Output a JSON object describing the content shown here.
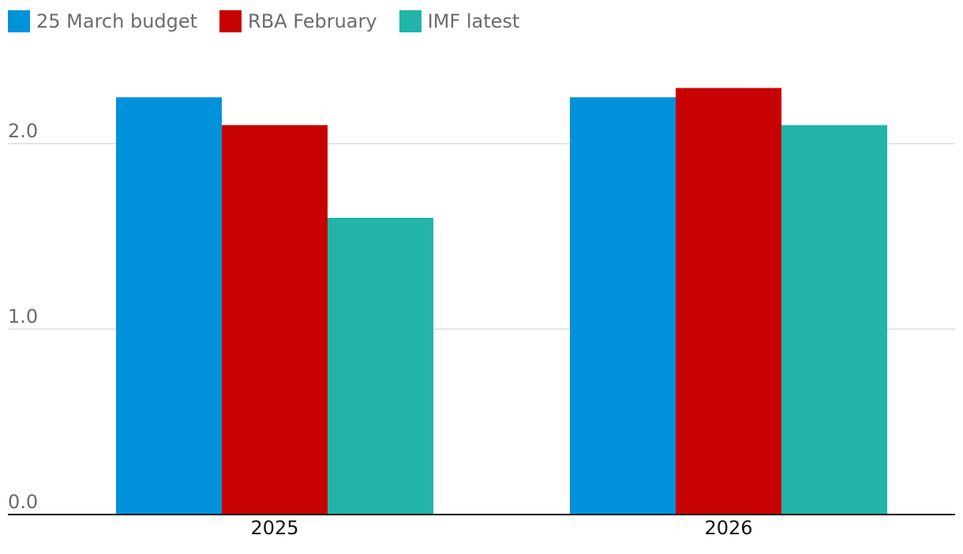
{
  "chart_data": {
    "type": "bar",
    "categories": [
      "2025",
      "2026"
    ],
    "series": [
      {
        "name": "25 March budget",
        "values": [
          2.25,
          2.25
        ],
        "color": "#0092db"
      },
      {
        "name": "RBA February",
        "values": [
          2.1,
          2.3
        ],
        "color": "#c70000"
      },
      {
        "name": "IMF latest",
        "values": [
          1.6,
          2.1
        ],
        "color": "#22b4a8"
      }
    ],
    "y_ticks": [
      "0.0",
      "1.0",
      "2.0"
    ],
    "y_tick_values": [
      0,
      1,
      2
    ],
    "ylim": [
      0,
      2.35
    ],
    "grid": true,
    "legend_position": "top-left",
    "title": "",
    "xlabel": "",
    "ylabel": ""
  }
}
